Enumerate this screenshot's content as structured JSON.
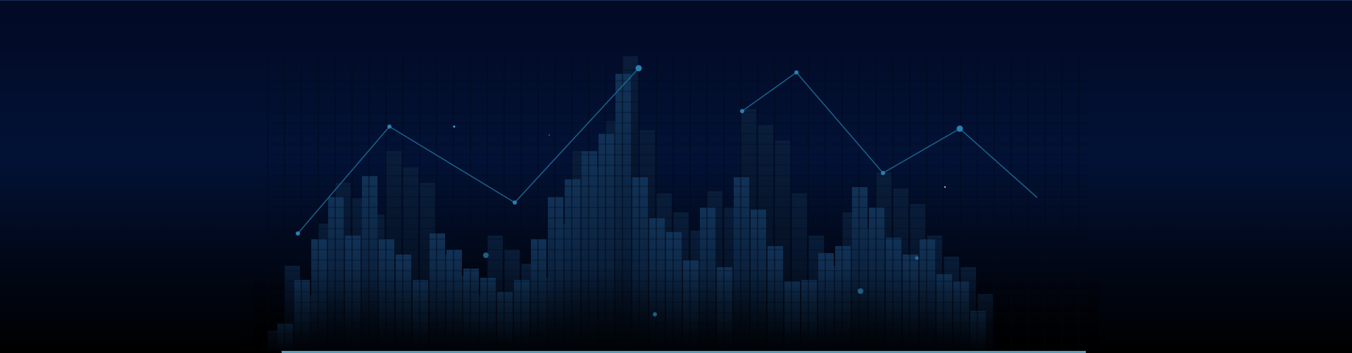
{
  "banner": {
    "description_tag": "decorative-hero-banner",
    "colors": {
      "background_top": "#020a24",
      "background_mid": "#021236",
      "background_bottom": "#000000",
      "bar_fill": "#0e2a4a",
      "bar_highlight": "#17395e",
      "line": "#1e6f96",
      "dot": "#2a7fb0",
      "base_line": "#6fc4e6"
    }
  }
}
